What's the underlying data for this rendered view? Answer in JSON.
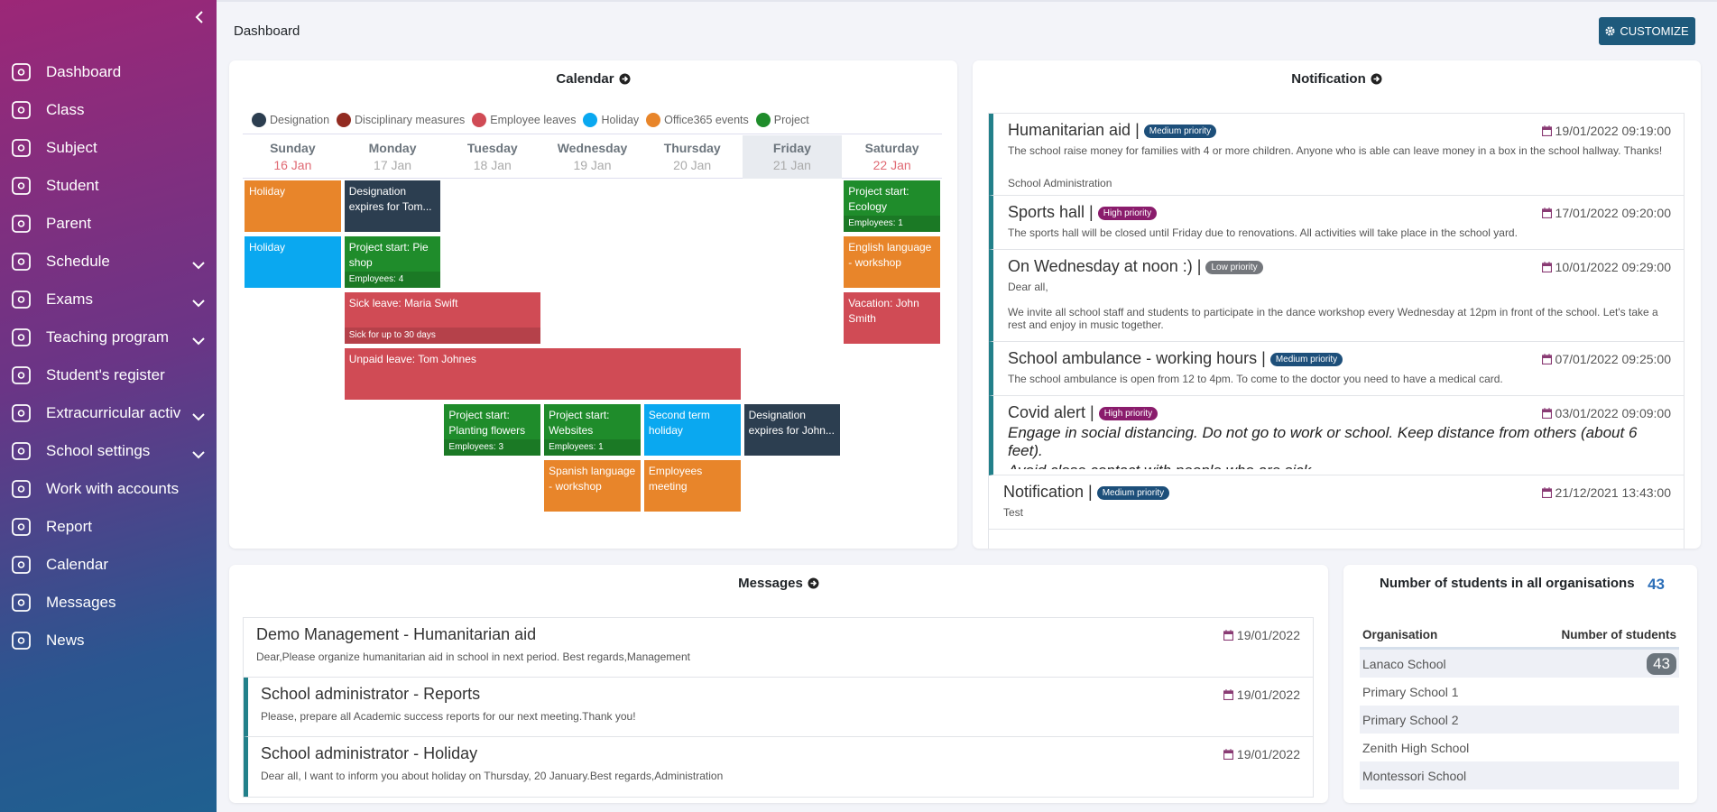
{
  "sidebar": {
    "menu": [
      {
        "label": "Dashboard",
        "submenu": false
      },
      {
        "label": "Class",
        "submenu": false
      },
      {
        "label": "Subject",
        "submenu": false
      },
      {
        "label": "Student",
        "submenu": false
      },
      {
        "label": "Parent",
        "submenu": false
      },
      {
        "label": "Schedule",
        "submenu": true
      },
      {
        "label": "Exams",
        "submenu": true
      },
      {
        "label": "Teaching program",
        "submenu": true
      },
      {
        "label": "Student's register",
        "submenu": false
      },
      {
        "label": "Extracurricular activ",
        "submenu": true
      },
      {
        "label": "School settings",
        "submenu": true
      },
      {
        "label": "Work with accounts",
        "submenu": false
      },
      {
        "label": "Report",
        "submenu": false
      },
      {
        "label": "Calendar",
        "submenu": false
      },
      {
        "label": "Messages",
        "submenu": false
      },
      {
        "label": "News",
        "submenu": false
      }
    ]
  },
  "header": {
    "title": "Dashboard",
    "button": "CUSTOMIZE"
  },
  "calendar": {
    "title": "Calendar",
    "legend": [
      {
        "label": "Designation",
        "color": "#2c3e50"
      },
      {
        "label": "Disciplinary measures",
        "color": "#922b21"
      },
      {
        "label": "Employee leaves",
        "color": "#d04b55"
      },
      {
        "label": "Holiday",
        "color": "#0aa8f0"
      },
      {
        "label": "Office365 events",
        "color": "#e8852a"
      },
      {
        "label": "Project",
        "color": "#1f8c2b"
      }
    ],
    "days": [
      {
        "name": "Sunday",
        "date": "16 Jan"
      },
      {
        "name": "Monday",
        "date": "17 Jan"
      },
      {
        "name": "Tuesday",
        "date": "18 Jan"
      },
      {
        "name": "Wednesday",
        "date": "19 Jan"
      },
      {
        "name": "Thursday",
        "date": "20 Jan"
      },
      {
        "name": "Friday",
        "date": "21 Jan"
      },
      {
        "name": "Saturday",
        "date": "22 Jan"
      }
    ],
    "highlighted_day": "Friday",
    "rows": [
      [
        {
          "title": "Holiday",
          "category": "Office365 events",
          "from": "Sunday",
          "to": "Sunday"
        },
        {
          "title": "Designation expires for Tom...",
          "category": "Designation",
          "from": "Monday",
          "to": "Monday"
        },
        {
          "title": "Project start: Ecology",
          "detail": "Employees: 1",
          "category": "Project",
          "from": "Saturday",
          "to": "Saturday"
        }
      ],
      [
        {
          "title": "Holiday",
          "category": "Holiday",
          "from": "Sunday",
          "to": "Sunday"
        },
        {
          "title": "Project start: Pie shop",
          "detail": "Employees: 4",
          "category": "Project",
          "from": "Monday",
          "to": "Monday"
        },
        {
          "title": "English language - workshop",
          "category": "Office365 events",
          "from": "Saturday",
          "to": "Saturday"
        }
      ],
      [
        {
          "title": "Sick leave: Maria Swift",
          "detail": "Sick for up to 30 days",
          "category": "Employee leaves",
          "from": "Monday",
          "to": "Tuesday"
        },
        {
          "title": "Vacation: John Smith",
          "category": "Employee leaves",
          "from": "Saturday",
          "to": "Saturday"
        }
      ],
      [
        {
          "title": "Unpaid leave: Tom Johnes",
          "category": "Employee leaves",
          "from": "Monday",
          "to": "Thursday"
        }
      ],
      [
        {
          "title": "Project start: Planting flowers",
          "detail": "Employees: 3",
          "category": "Project",
          "from": "Tuesday",
          "to": "Tuesday"
        },
        {
          "title": "Project start: Websites",
          "detail": "Employees: 1",
          "category": "Project",
          "from": "Wednesday",
          "to": "Wednesday"
        },
        {
          "title": "Second term holiday",
          "category": "Holiday",
          "from": "Thursday",
          "to": "Thursday"
        },
        {
          "title": "Designation expires for John...",
          "category": "Designation",
          "from": "Friday",
          "to": "Friday"
        }
      ],
      [
        {
          "title": "Spanish language - workshop",
          "category": "Office365 events",
          "from": "Wednesday",
          "to": "Wednesday"
        },
        {
          "title": "Employees meeting",
          "category": "Office365 events",
          "from": "Thursday",
          "to": "Thursday"
        }
      ]
    ]
  },
  "notifications": {
    "title": "Notification",
    "items": [
      {
        "title": "Humanitarian aid |",
        "priority": {
          "label": "Medium priority",
          "color": "#1d4f7a"
        },
        "date": "19/01/2022 09:19:00",
        "accent": true,
        "body": [
          "The school raise money for families with 4 or more children. Anyone who is able can leave money in a box in the school hallway. Thanks!"
        ],
        "footer": "School Administration"
      },
      {
        "title": "Sports hall |",
        "priority": {
          "label": "High priority",
          "color": "#8a1c6c"
        },
        "date": "17/01/2022 09:20:00",
        "accent": true,
        "body": [
          "The sports hall will be closed until Friday due to renovations. All activities will take place in the school yard."
        ]
      },
      {
        "title": "On Wednesday at noon :) |",
        "priority": {
          "label": "Low priority",
          "color": "#74777c"
        },
        "date": "10/01/2022 09:29:00",
        "accent": true,
        "body": [
          "Dear all,",
          "We invite all school staff and students to participate in the dance workshop every Wednesday at 12pm in front of the school. Let's take a rest and enjoy in music together."
        ]
      },
      {
        "title": "School ambulance - working hours |",
        "priority": {
          "label": "Medium priority",
          "color": "#1d4f7a"
        },
        "date": "07/01/2022 09:25:00",
        "accent": true,
        "body": [
          "The school ambulance is open from 12 to 4pm. To come to the doctor you need to have a medical card."
        ]
      },
      {
        "title": "Covid alert |",
        "priority": {
          "label": "High priority",
          "color": "#8a1c6c"
        },
        "date": "03/01/2022 09:09:00",
        "accent": true,
        "emphasis": true,
        "body": [
          "Engage in social distancing. Do not go to work or school. Keep distance from others (about 6 feet).",
          "Avoid close contact with people who are sick."
        ]
      },
      {
        "title": "Notification |",
        "priority": {
          "label": "Medium priority",
          "color": "#1d4f7a"
        },
        "date": "21/12/2021 13:43:00",
        "accent": false,
        "body": [
          "Test"
        ]
      }
    ]
  },
  "messages": {
    "title": "Messages",
    "items": [
      {
        "title": "Demo Management - Humanitarian aid",
        "date": "19/01/2022",
        "accent": false,
        "body": "Dear,Please organize humanitarian aid in school in next period. Best regards,Management"
      },
      {
        "title": "School administrator - Reports",
        "date": "19/01/2022",
        "accent": true,
        "body": "Please, prepare all Academic success reports for our next meeting.Thank you!"
      },
      {
        "title": "School administrator - Holiday",
        "date": "19/01/2022",
        "accent": true,
        "body": "Dear all, I want to inform you about holiday on Thursday, 20 January.Best regards,Administration"
      }
    ]
  },
  "students": {
    "title": "Number of students in all organisations",
    "total": 43,
    "columns": [
      "Organisation",
      "Number of students"
    ],
    "rows": [
      {
        "name": "Lanaco School",
        "count": 43
      },
      {
        "name": "Primary School 1",
        "count": null
      },
      {
        "name": "Primary School 2",
        "count": null
      },
      {
        "name": "Zenith High School",
        "count": null
      },
      {
        "name": "Montessori School",
        "count": null
      }
    ]
  }
}
